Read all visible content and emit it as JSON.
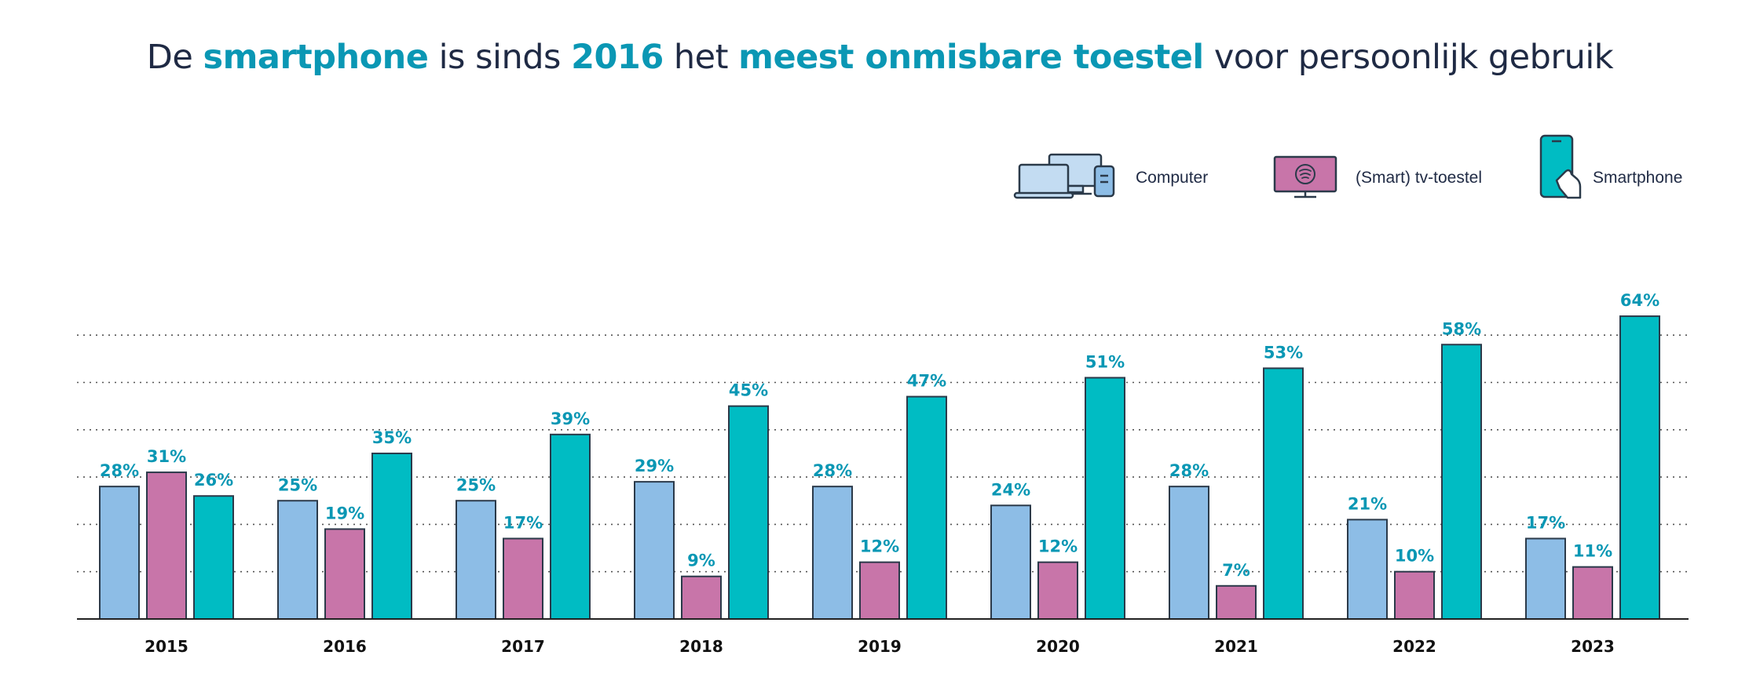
{
  "title": {
    "p1": "De ",
    "h1": "smartphone",
    "p2": " is sinds ",
    "h2": "2016",
    "p3": " het ",
    "h3": "meest onmisbare toestel",
    "p4": " voor persoonlijk gebruik"
  },
  "colors": {
    "computer": "#8dbde6",
    "tv": "#c875a9",
    "smartphone": "#00bcc3",
    "label": "#0a97b4",
    "axis": "#222222"
  },
  "chart_data": {
    "type": "bar",
    "title": "De smartphone is sinds 2016 het meest onmisbare toestel voor persoonlijk gebruik",
    "categories": [
      "2015",
      "2016",
      "2017",
      "2018",
      "2019",
      "2020",
      "2021",
      "2022",
      "2023"
    ],
    "series": [
      {
        "name": "Computer",
        "key": "computer",
        "icon": "computer-icon",
        "values": [
          28,
          25,
          25,
          29,
          28,
          24,
          28,
          21,
          17
        ]
      },
      {
        "name": "(Smart) tv-toestel",
        "key": "tv",
        "icon": "tv-icon",
        "values": [
          31,
          19,
          17,
          9,
          12,
          12,
          7,
          10,
          11
        ]
      },
      {
        "name": "Smartphone",
        "key": "smartphone",
        "icon": "smartphone-icon",
        "values": [
          26,
          35,
          39,
          45,
          47,
          51,
          53,
          58,
          64
        ]
      }
    ],
    "value_suffix": "%",
    "ylim": [
      0,
      60
    ],
    "gridlines": [
      10,
      20,
      30,
      40,
      50,
      60
    ],
    "grid": true,
    "legend_position": "top-right",
    "xlabel": "",
    "ylabel": ""
  }
}
